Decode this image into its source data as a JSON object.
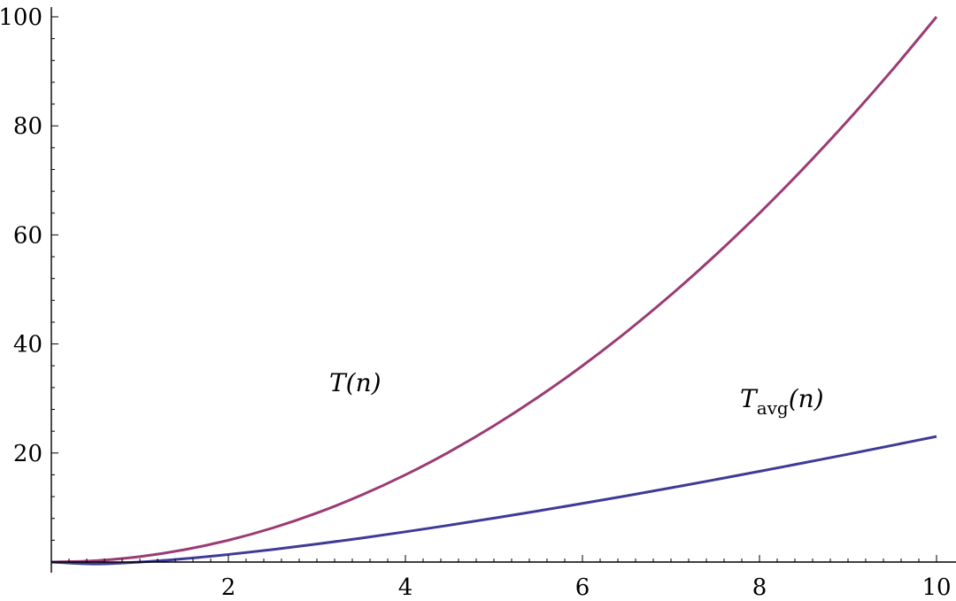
{
  "chart_data": {
    "type": "line",
    "title": "",
    "xlabel": "",
    "ylabel": "",
    "xlim": [
      0,
      10.3
    ],
    "ylim": [
      -2,
      103
    ],
    "grid": false,
    "x_ticks": [
      2,
      4,
      6,
      8,
      10
    ],
    "x_tick_labels": [
      "2",
      "4",
      "6",
      "8",
      "10"
    ],
    "y_ticks": [
      20,
      40,
      60,
      80,
      100
    ],
    "y_tick_labels": [
      "20",
      "40",
      "60",
      "80",
      "100"
    ],
    "series": [
      {
        "name": "T(n)",
        "label_main": "T(n)",
        "color": "#9b3b74",
        "x": [
          0,
          0.5,
          1,
          1.5,
          2,
          2.5,
          3,
          3.5,
          4,
          4.5,
          5,
          5.5,
          6,
          6.5,
          7,
          7.5,
          8,
          8.5,
          9,
          9.5,
          10
        ],
        "y": [
          0,
          0.25,
          1,
          2.25,
          4,
          6.25,
          9,
          12.25,
          16,
          20.25,
          25,
          30.25,
          36,
          42.25,
          49,
          56.25,
          64,
          72.25,
          81,
          90.25,
          100
        ]
      },
      {
        "name": "Tavg(n)",
        "label_main": "T",
        "label_sub": "avg",
        "label_tail": "(n)",
        "color": "#3f3a97",
        "x": [
          0,
          0.5,
          1,
          1.5,
          2,
          2.5,
          3,
          3.5,
          4,
          4.5,
          5,
          5.5,
          6,
          6.5,
          7,
          7.5,
          8,
          8.5,
          9,
          9.5,
          10
        ],
        "y": [
          0,
          -0.35,
          0,
          0.61,
          1.39,
          2.29,
          3.3,
          4.39,
          5.55,
          6.77,
          8.05,
          9.38,
          10.75,
          12.16,
          13.62,
          15.11,
          16.64,
          18.2,
          19.78,
          21.4,
          23.03
        ]
      }
    ]
  }
}
